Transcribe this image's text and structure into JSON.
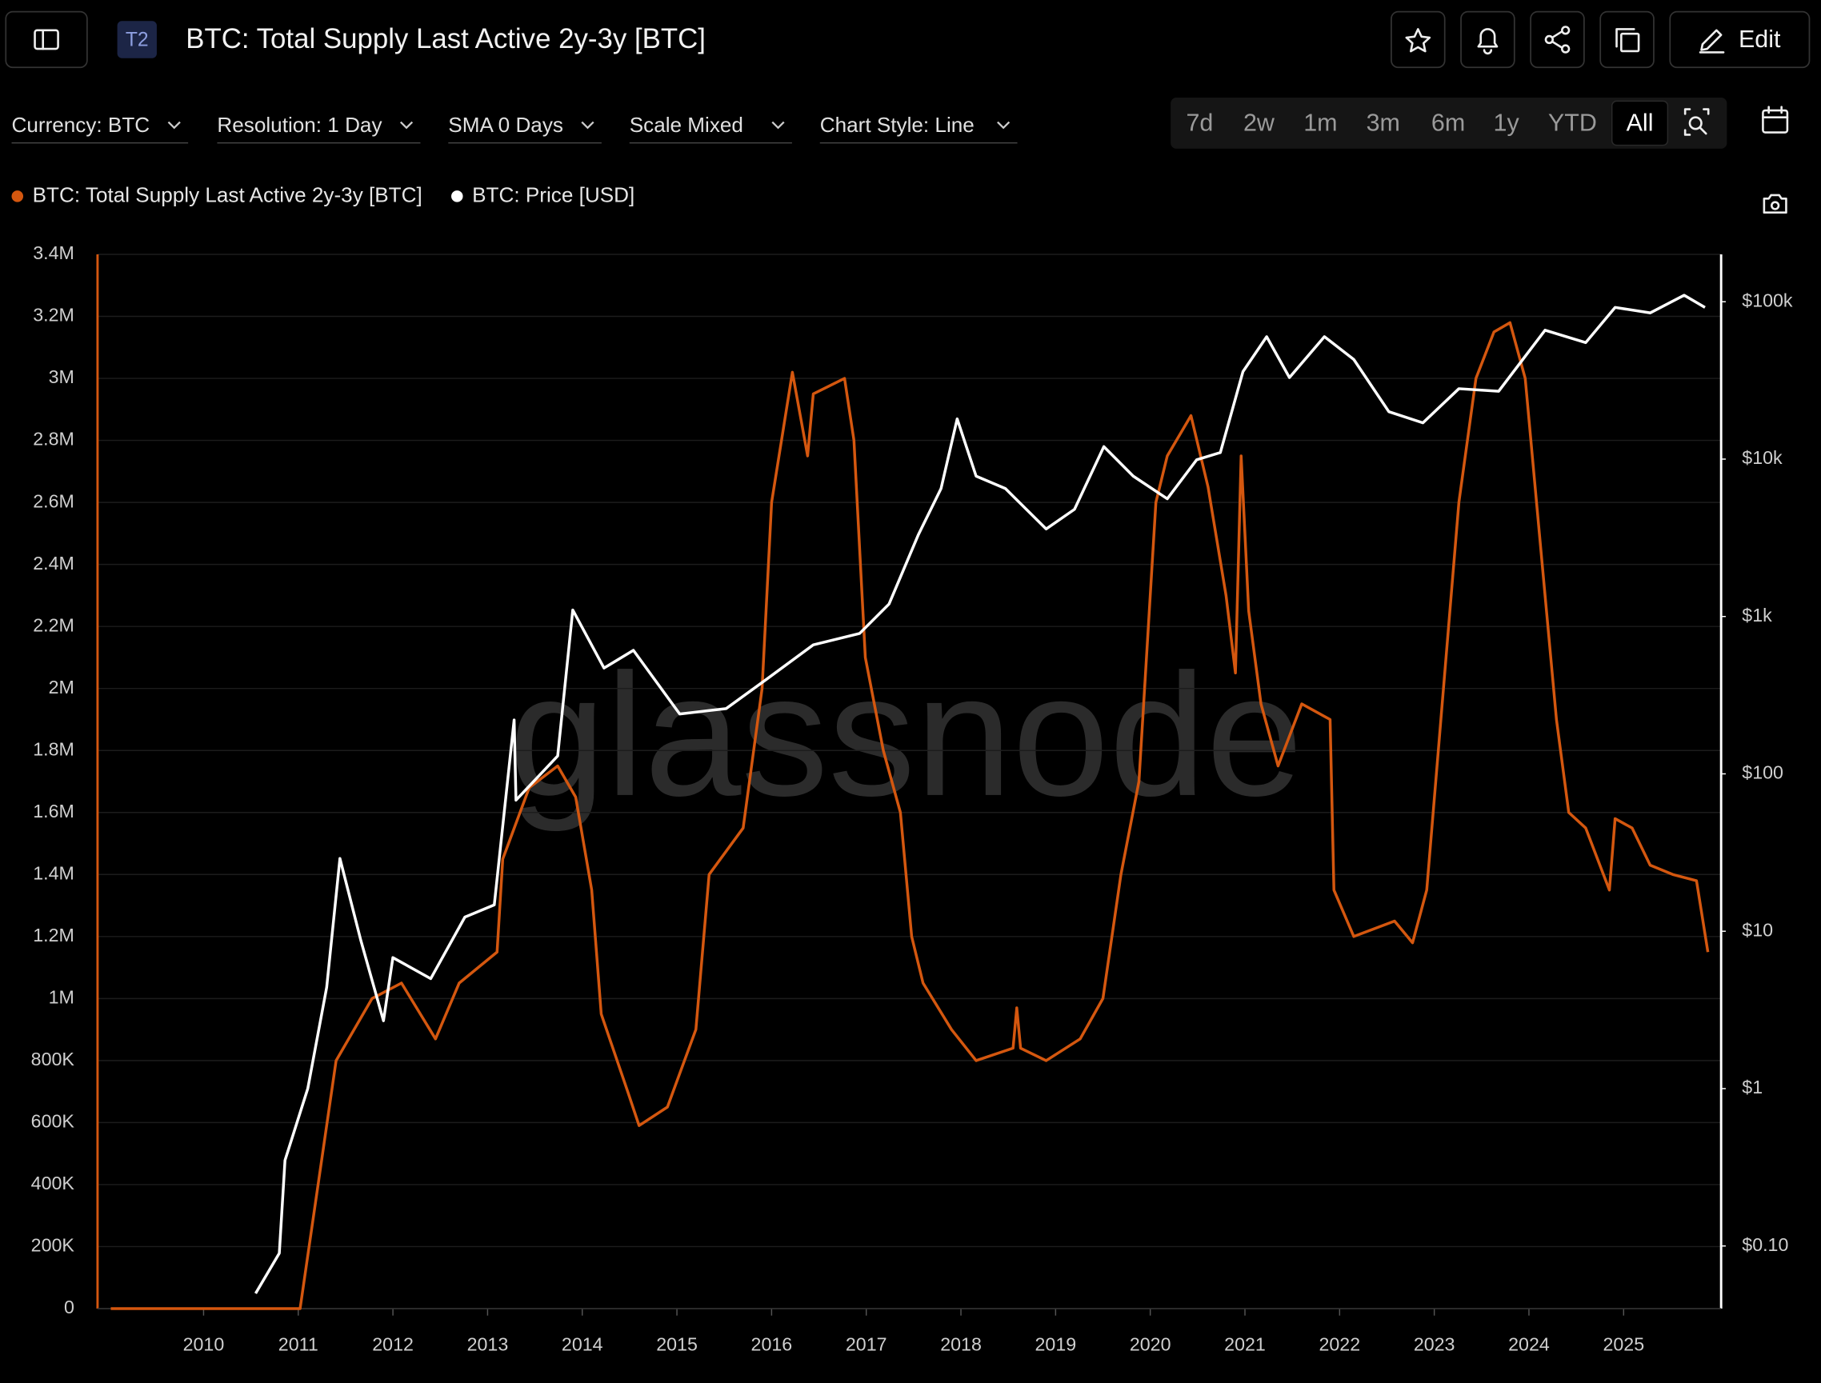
{
  "ui": {
    "badge": "T2",
    "title": "BTC: Total Supply Last Active 2y-3y [BTC]",
    "edit": "Edit",
    "filters": [
      "Currency: BTC",
      "Resolution: 1 Day",
      "SMA 0 Days",
      "Scale Mixed",
      "Chart Style: Line"
    ],
    "ranges": [
      "7d",
      "2w",
      "1m",
      "3m",
      "6m",
      "1y",
      "YTD",
      "All"
    ],
    "active_range": "All",
    "watermark": "glassnode"
  },
  "chart_data": {
    "type": "line",
    "xlim": [
      2008.88,
      2026.03
    ],
    "xticks": [
      2010,
      2011,
      2012,
      2013,
      2014,
      2015,
      2016,
      2017,
      2018,
      2019,
      2020,
      2021,
      2022,
      2023,
      2024,
      2025
    ],
    "ylim": [
      0,
      3400000
    ],
    "yticks": [
      0,
      {
        "value": 200000,
        "label": "200K"
      },
      {
        "value": 400000,
        "label": "400K"
      },
      {
        "value": 600000,
        "label": "600K"
      },
      {
        "value": 800000,
        "label": "800K"
      },
      {
        "value": 1000000,
        "label": "1M"
      },
      {
        "value": 1200000,
        "label": "1.2M"
      },
      {
        "value": 1400000,
        "label": "1.4M"
      },
      {
        "value": 1600000,
        "label": "1.6M"
      },
      {
        "value": 1800000,
        "label": "1.8M"
      },
      {
        "value": 2000000,
        "label": "2M"
      },
      {
        "value": 2200000,
        "label": "2.2M"
      },
      {
        "value": 2400000,
        "label": "2.4M"
      },
      {
        "value": 2600000,
        "label": "2.6M"
      },
      {
        "value": 2800000,
        "label": "2.8M"
      },
      {
        "value": 3000000,
        "label": "3M"
      },
      {
        "value": 3200000,
        "label": "3.2M"
      },
      {
        "value": 3400000,
        "label": "3.4M"
      }
    ],
    "y2lim": [
      0.04,
      200000
    ],
    "y2scale": "log",
    "y2ticks": [
      {
        "value": 0.1,
        "label": "$0.10"
      },
      {
        "value": 1,
        "label": "$1"
      },
      {
        "value": 10,
        "label": "$10"
      },
      {
        "value": 100,
        "label": "$100"
      },
      {
        "value": 1000,
        "label": "$1k"
      },
      {
        "value": 10000,
        "label": "$10k"
      },
      {
        "value": 100000,
        "label": "$100k"
      }
    ],
    "grid": true,
    "legend": "top-left",
    "series": [
      {
        "name": "BTC: Total Supply Last Active 2y-3y [BTC]",
        "color": "#d4570f",
        "x": [
          2009.02,
          2011.02,
          2011.4,
          2011.78,
          2012.09,
          2012.45,
          2012.7,
          2013.1,
          2013.16,
          2013.44,
          2013.74,
          2013.93,
          2014.1,
          2014.2,
          2014.48,
          2014.6,
          2014.9,
          2015.2,
          2015.34,
          2015.7,
          2015.9,
          2016.0,
          2016.22,
          2016.38,
          2016.44,
          2016.77,
          2016.87,
          2016.99,
          2017.18,
          2017.36,
          2017.48,
          2017.6,
          2017.9,
          2018.16,
          2018.55,
          2018.59,
          2018.63,
          2018.9,
          2019.26,
          2019.5,
          2019.69,
          2019.88,
          2020.06,
          2020.18,
          2020.43,
          2020.61,
          2020.8,
          2020.9,
          2020.96,
          2021.04,
          2021.17,
          2021.35,
          2021.6,
          2021.9,
          2021.94,
          2022.15,
          2022.58,
          2022.77,
          2022.92,
          2023.07,
          2023.26,
          2023.44,
          2023.63,
          2023.8,
          2023.96,
          2024.11,
          2024.29,
          2024.42,
          2024.6,
          2024.85,
          2024.91,
          2025.09,
          2025.28,
          2025.52,
          2025.77,
          2025.89
        ],
        "values": [
          0,
          0,
          800000,
          1000000,
          1050000,
          870000,
          1050000,
          1150000,
          1450000,
          1680000,
          1750000,
          1650000,
          1350000,
          950000,
          700000,
          590000,
          650000,
          900000,
          1400000,
          1550000,
          2000000,
          2600000,
          3020000,
          2750000,
          2950000,
          3000000,
          2800000,
          2100000,
          1800000,
          1600000,
          1200000,
          1050000,
          900000,
          800000,
          840000,
          970000,
          840000,
          800000,
          870000,
          1000000,
          1400000,
          1700000,
          2600000,
          2750000,
          2880000,
          2650000,
          2300000,
          2050000,
          2750000,
          2250000,
          1950000,
          1750000,
          1950000,
          1900000,
          1350000,
          1200000,
          1250000,
          1180000,
          1350000,
          1900000,
          2600000,
          3000000,
          3150000,
          3180000,
          3000000,
          2500000,
          1900000,
          1600000,
          1550000,
          1350000,
          1580000,
          1550000,
          1430000,
          1400000,
          1380000,
          1150000
        ]
      },
      {
        "name": "BTC: Price [USD]",
        "color": "#ffffff",
        "axis": "y2",
        "x": [
          2010.55,
          2010.8,
          2010.86,
          2011.1,
          2011.3,
          2011.44,
          2011.66,
          2011.9,
          2012.0,
          2012.4,
          2012.76,
          2013.07,
          2013.28,
          2013.3,
          2013.74,
          2013.9,
          2014.23,
          2014.54,
          2015.03,
          2015.52,
          2015.95,
          2016.44,
          2016.93,
          2017.24,
          2017.55,
          2017.79,
          2017.96,
          2018.16,
          2018.47,
          2018.9,
          2019.2,
          2019.51,
          2019.82,
          2020.18,
          2020.49,
          2020.74,
          2020.98,
          2021.23,
          2021.47,
          2021.84,
          2022.15,
          2022.52,
          2022.88,
          2023.26,
          2023.68,
          2024.17,
          2024.6,
          2024.91,
          2025.28,
          2025.64,
          2025.86
        ],
        "values": [
          0.05,
          0.09,
          0.35,
          1,
          4.4,
          29,
          8.8,
          2.7,
          6.8,
          5,
          12.3,
          14.7,
          220,
          68,
          130,
          1100,
          470,
          610,
          240,
          260,
          400,
          660,
          780,
          1200,
          3300,
          6500,
          18000,
          7800,
          6500,
          3600,
          4800,
          12000,
          7800,
          5600,
          9900,
          11000,
          36000,
          60000,
          33000,
          60000,
          43000,
          20000,
          17000,
          28000,
          27000,
          66000,
          55000,
          92000,
          85000,
          110000,
          92000
        ]
      }
    ]
  }
}
